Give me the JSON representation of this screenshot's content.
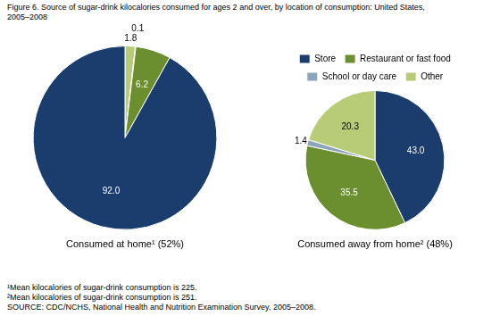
{
  "title": [
    "Figure 6. Source of sugar-drink kilocalories consumed for ages 2 and over, by location of consumption: United States,",
    "2005–2008"
  ],
  "annotations": [
    "¹Mean kilocalories of sugar-drink consumption is 225.",
    "²Mean kilocalories of sugar-drink consumption is 251.",
    "SOURCE: CDC/NCHS, National Health and Nutrition Examination Survey, 2005–2008."
  ],
  "chart_data": [
    {
      "type": "pie",
      "title": "Consumed at home¹ (52%)",
      "categories": [
        "Other",
        "School or day care",
        "Restaurant or fast food",
        "Store"
      ],
      "values": [
        1.8,
        0.1,
        6.2,
        92.0
      ],
      "value_labels": [
        "1.8",
        "0.1",
        "6.2",
        "92.0"
      ],
      "colors": [
        "#b8cc78",
        "#8ca5b8",
        "#6b8f2e",
        "#1b3d6e"
      ],
      "data_labels": true
    },
    {
      "type": "pie",
      "title": "Consumed away from home² (48%)",
      "categories": [
        "Store",
        "Restaurant or fast food",
        "School or day care",
        "Other"
      ],
      "values": [
        43.0,
        35.5,
        1.4,
        20.3
      ],
      "value_labels": [
        "43.0",
        "35.5",
        "1.4",
        "20.3"
      ],
      "colors": [
        "#1b3d6e",
        "#6b8f2e",
        "#8ca5b8",
        "#b8cc78"
      ],
      "data_labels": true,
      "legend": "top"
    }
  ]
}
